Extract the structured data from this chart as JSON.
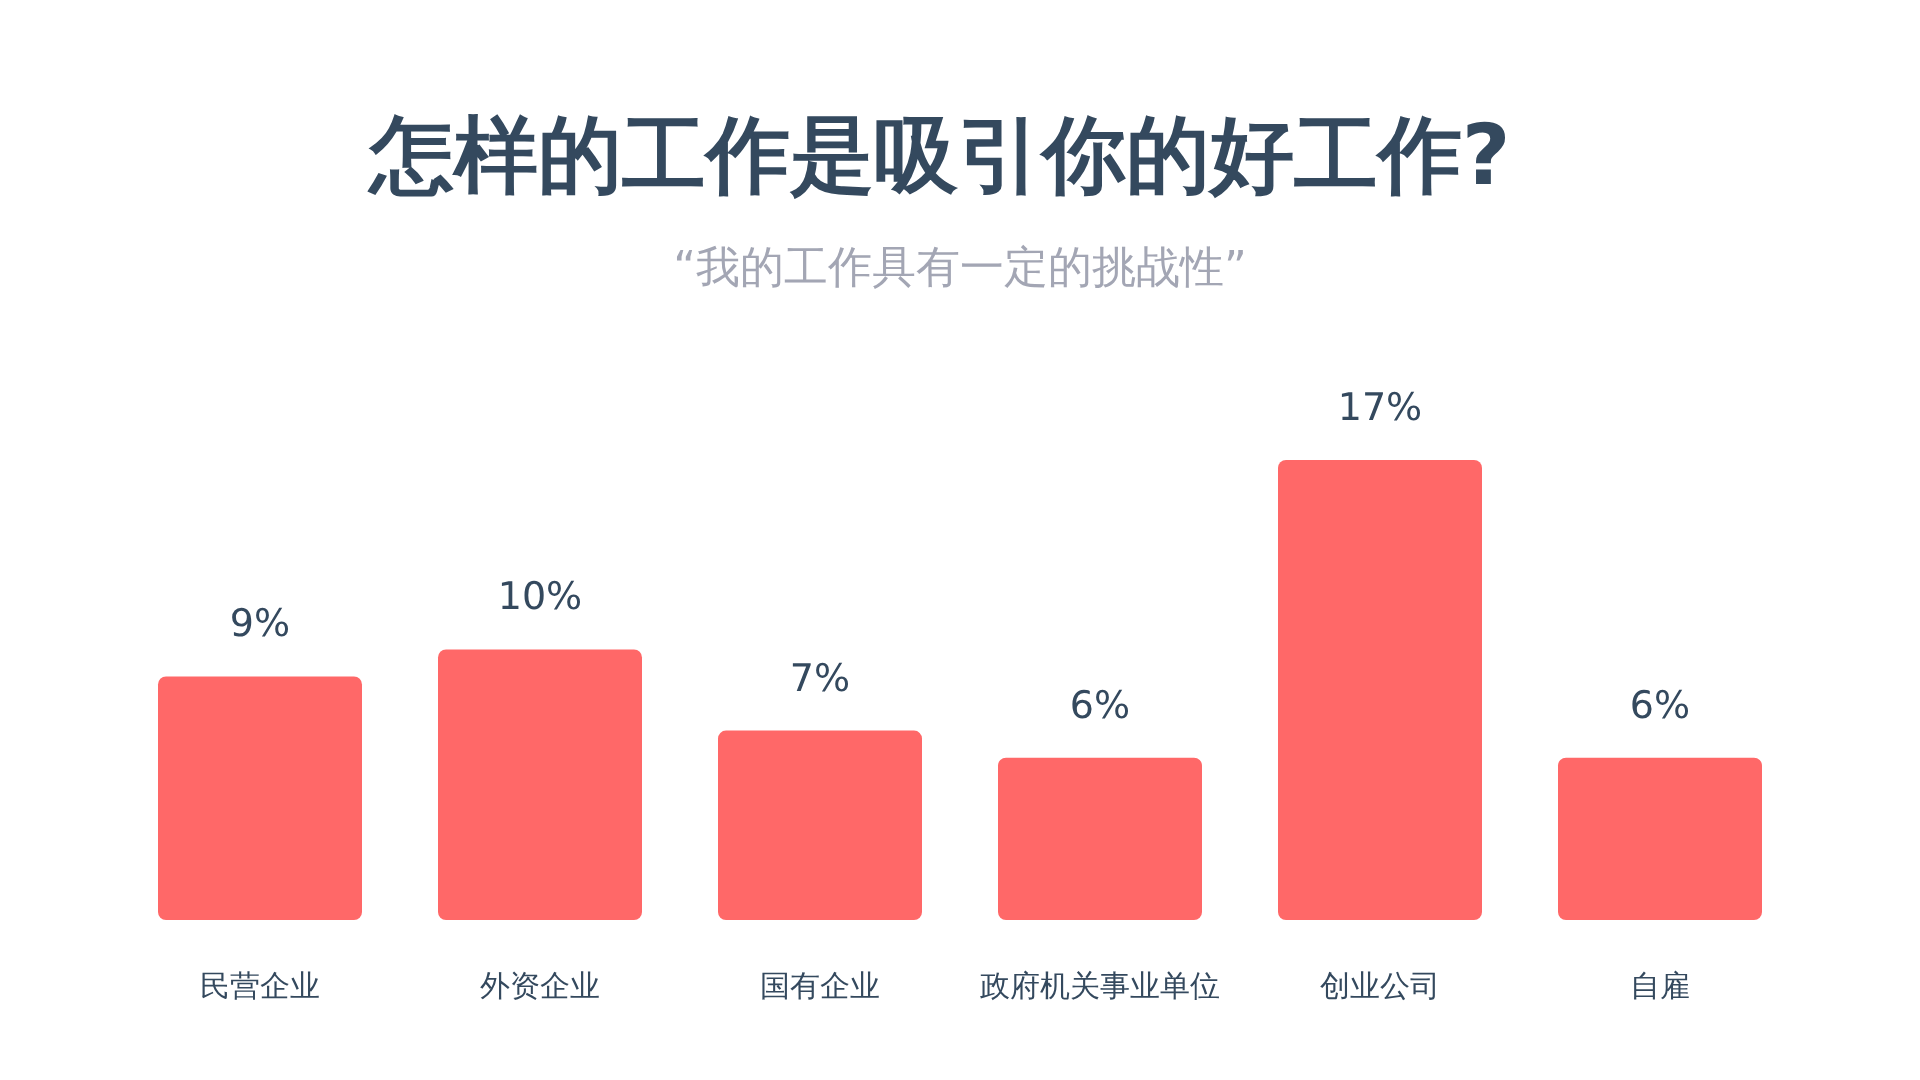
{
  "chart_data": {
    "type": "bar",
    "title": "怎样的工作是吸引你的好工作?",
    "subtitle": "“我的工作具有一定的挑战性”",
    "categories": [
      "民营企业",
      "外资企业",
      "国有企业",
      "政府机关事业单位",
      "创业公司",
      "自雇"
    ],
    "values": [
      9,
      10,
      7,
      6,
      17,
      6
    ],
    "value_labels": [
      "9%",
      "10%",
      "7%",
      "6%",
      "17%",
      "6%"
    ],
    "color": "#ff6868"
  }
}
